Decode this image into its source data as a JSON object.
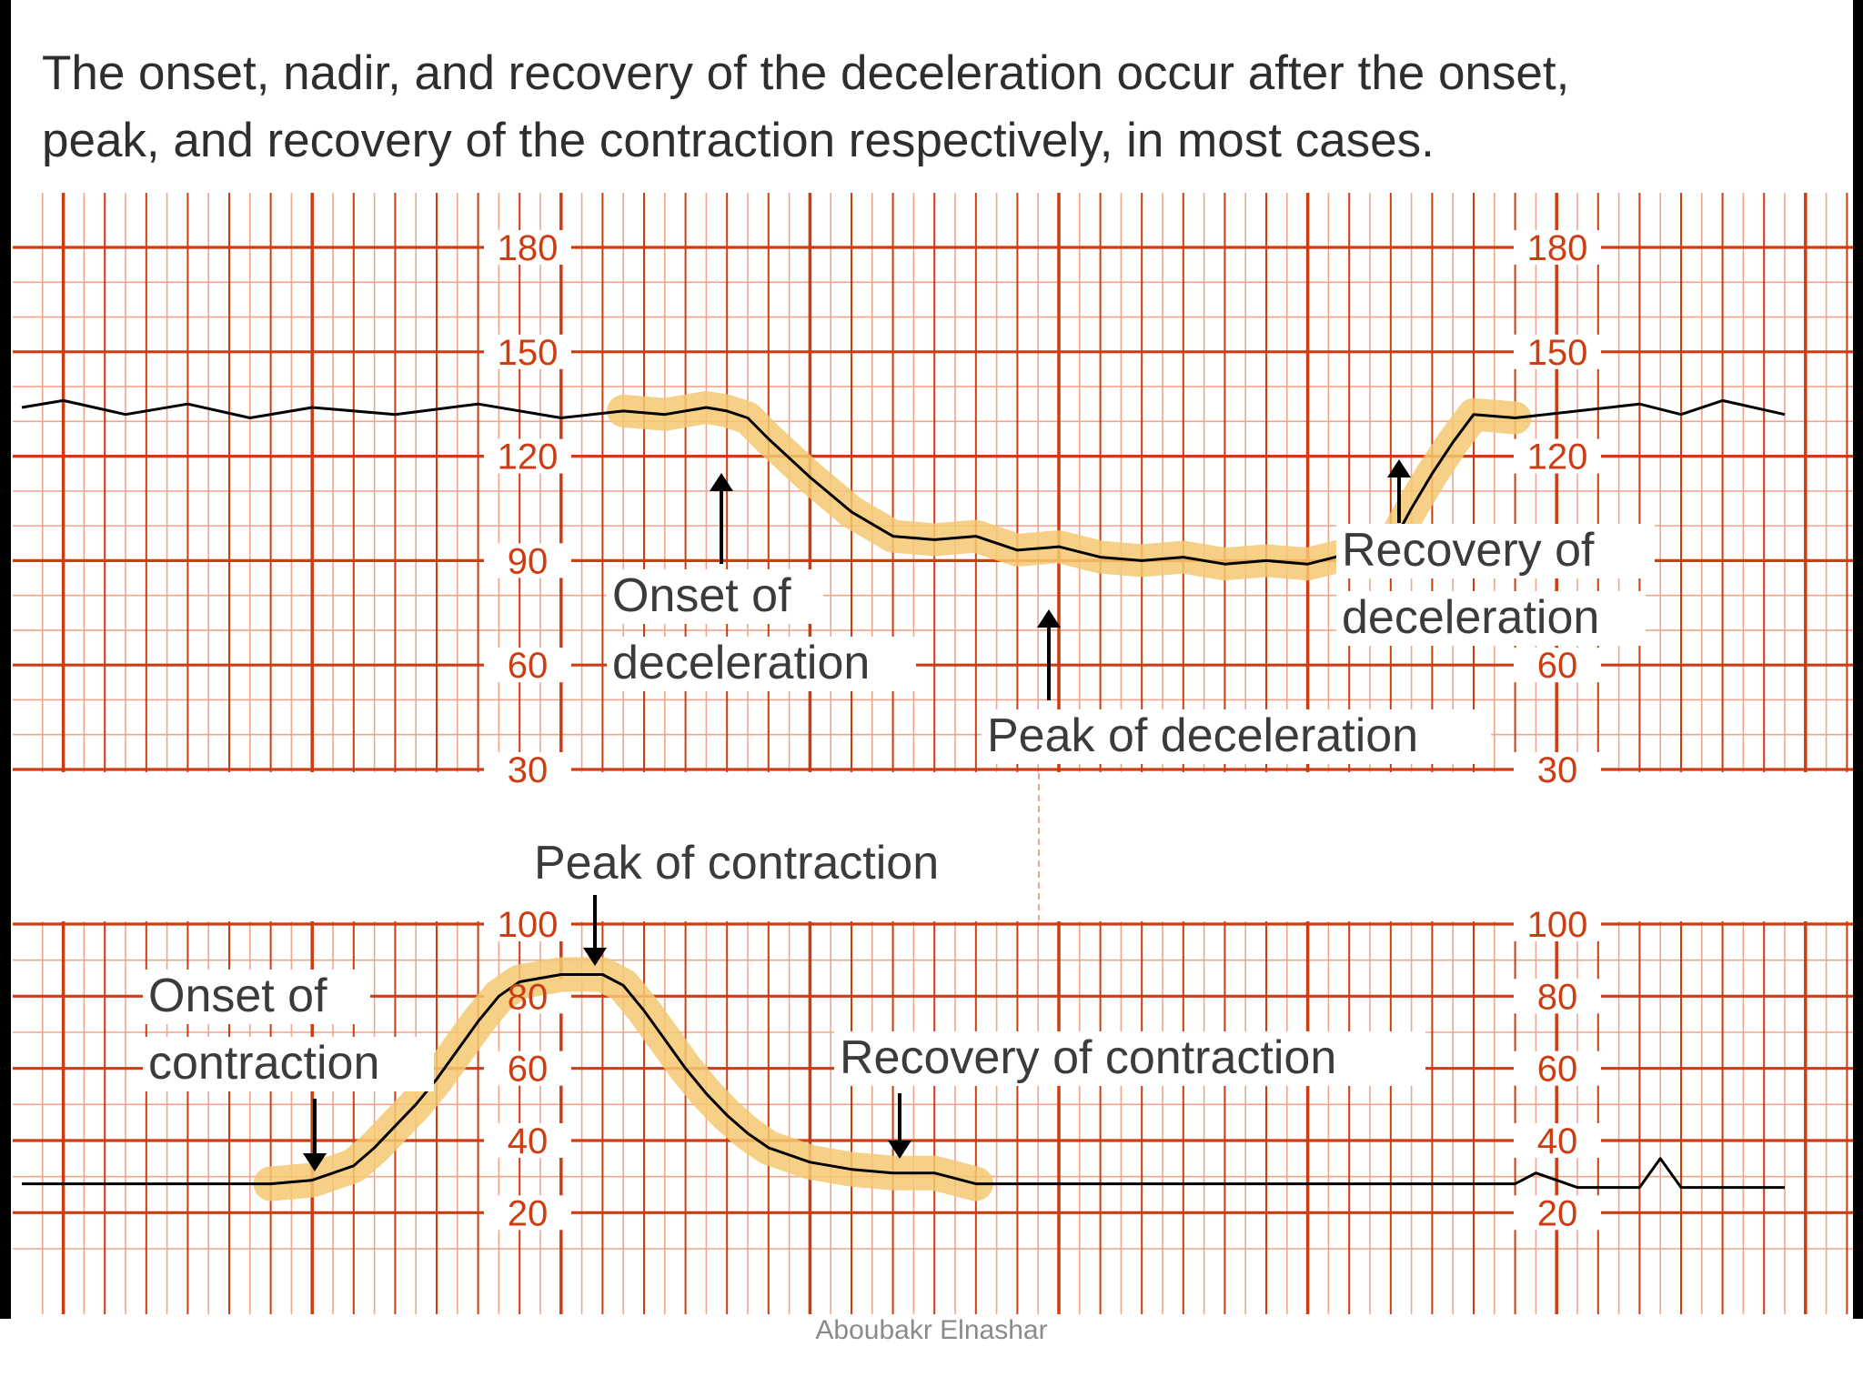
{
  "header": {
    "line1": "The onset, nadir, and recovery of the deceleration occur after the onset,",
    "line2": "peak, and recovery of the contraction respectively, in most cases."
  },
  "colors": {
    "grid": "#cc3d12",
    "grid_minor": "#f0a58b",
    "trace": "#000000",
    "highlight": "#f5c871",
    "label_bg": "#ffffff",
    "label": "#3b3b3b",
    "caption": "#8a8a8a"
  },
  "chart_data": [
    {
      "type": "line",
      "panel": "fetal-heart-rate",
      "y_ticks": [
        "180",
        "150",
        "120",
        "90",
        "60",
        "30"
      ],
      "ylim": [
        30,
        180
      ],
      "grid": true,
      "x": [
        0,
        2,
        5,
        8,
        11,
        14,
        18,
        22,
        26,
        29,
        31,
        33,
        34,
        35,
        36,
        38,
        40,
        42,
        44,
        46,
        48,
        50,
        52,
        54,
        56,
        58,
        60,
        62,
        64,
        66,
        67,
        68,
        69,
        70,
        72,
        75,
        78,
        80,
        82,
        85
      ],
      "series": [
        {
          "values": [
            134,
            136,
            132,
            135,
            131,
            134,
            132,
            135,
            131,
            133,
            132,
            134,
            133,
            131,
            125,
            114,
            104,
            97,
            96,
            97,
            93,
            94,
            91,
            90,
            91,
            89,
            90,
            89,
            92,
            94,
            105,
            115,
            124,
            132,
            131,
            133,
            135,
            132,
            136,
            132
          ]
        }
      ],
      "annotations": [
        {
          "line1": "Onset of",
          "line2": "deceleration"
        },
        {
          "line1": "Peak of deceleration"
        },
        {
          "line1": "Recovery of",
          "line2": "deceleration"
        }
      ]
    },
    {
      "type": "line",
      "panel": "uterine-activity",
      "y_ticks": [
        "100",
        "80",
        "60",
        "40",
        "20"
      ],
      "ylim": [
        10,
        100
      ],
      "grid": true,
      "x": [
        0,
        6,
        12,
        14,
        16,
        17,
        18,
        19,
        20,
        21,
        22,
        23,
        24,
        25,
        26,
        27,
        28,
        29,
        30,
        31,
        32,
        33,
        34,
        35,
        36,
        38,
        40,
        42,
        44,
        46,
        50,
        54,
        56,
        57,
        60,
        62,
        65,
        70,
        72,
        73,
        75,
        78,
        79,
        80,
        85
      ],
      "series": [
        {
          "values": [
            28,
            28,
            28,
            29,
            33,
            38,
            44,
            50,
            57,
            65,
            73,
            80,
            84,
            85,
            86,
            86,
            86,
            83,
            76,
            68,
            60,
            53,
            47,
            42,
            38,
            34,
            32,
            31,
            31,
            28,
            28,
            28,
            28,
            28,
            28,
            28,
            28,
            28,
            28,
            31,
            27,
            27,
            35,
            27,
            27
          ]
        }
      ],
      "annotations": [
        {
          "line1": "Peak of contraction"
        },
        {
          "line1": "Onset of",
          "line2": "contraction"
        },
        {
          "line1": "Recovery of contraction"
        }
      ]
    }
  ],
  "footer": {
    "credit": "Aboubakr Elnashar"
  }
}
